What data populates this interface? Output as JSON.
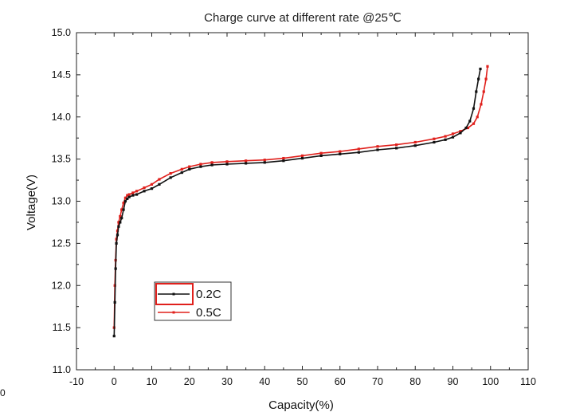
{
  "chart_data": {
    "type": "line",
    "title": "Charge curve at different rate @25℃",
    "xlabel": "Capacity(%)",
    "ylabel": "Voltage(V)",
    "xlim": [
      -10,
      110
    ],
    "ylim": [
      11.0,
      15.0
    ],
    "xticks": [
      "-10",
      "0",
      "10",
      "20",
      "30",
      "40",
      "50",
      "60",
      "70",
      "80",
      "90",
      "100",
      "110"
    ],
    "yticks": [
      "11.0",
      "11.5",
      "12.0",
      "12.5",
      "13.0",
      "13.5",
      "14.0",
      "14.5",
      "15.0"
    ],
    "grid": false,
    "legend_position": "lower-left",
    "series": [
      {
        "name": "0.2C",
        "color": "#111111",
        "x": [
          0.0,
          0.2,
          0.4,
          0.6,
          0.9,
          1.2,
          1.6,
          2.0,
          2.5,
          3.0,
          3.5,
          4.0,
          5.0,
          6.0,
          8.0,
          10.0,
          12.0,
          15.0,
          18.0,
          20.0,
          23.0,
          26.0,
          30.0,
          35.0,
          40.0,
          45.0,
          50.0,
          55.0,
          60.0,
          65.0,
          70.0,
          75.0,
          80.0,
          85.0,
          88.0,
          90.0,
          92.0,
          93.5,
          94.5,
          95.5,
          96.2,
          96.8,
          97.3
        ],
        "y": [
          11.4,
          11.8,
          12.2,
          12.5,
          12.6,
          12.7,
          12.75,
          12.8,
          12.9,
          13.0,
          13.03,
          13.05,
          13.07,
          13.08,
          13.12,
          13.15,
          13.2,
          13.28,
          13.34,
          13.38,
          13.41,
          13.43,
          13.44,
          13.45,
          13.46,
          13.48,
          13.51,
          13.54,
          13.56,
          13.58,
          13.61,
          13.63,
          13.66,
          13.7,
          13.73,
          13.76,
          13.81,
          13.87,
          13.95,
          14.1,
          14.3,
          14.45,
          14.57
        ]
      },
      {
        "name": "0.5C",
        "color": "#e0201c",
        "x": [
          0.0,
          0.2,
          0.4,
          0.6,
          0.9,
          1.2,
          1.6,
          2.0,
          2.5,
          3.0,
          3.5,
          4.0,
          5.0,
          6.0,
          8.0,
          10.0,
          12.0,
          15.0,
          18.0,
          20.0,
          23.0,
          26.0,
          30.0,
          35.0,
          40.0,
          45.0,
          50.0,
          55.0,
          60.0,
          65.0,
          70.0,
          75.0,
          80.0,
          85.0,
          88.0,
          90.0,
          92.0,
          94.0,
          95.5,
          96.5,
          97.5,
          98.2,
          98.8,
          99.2
        ],
        "y": [
          11.5,
          12.0,
          12.3,
          12.55,
          12.65,
          12.75,
          12.82,
          12.9,
          12.98,
          13.04,
          13.07,
          13.08,
          13.1,
          13.12,
          13.16,
          13.2,
          13.26,
          13.33,
          13.38,
          13.41,
          13.44,
          13.46,
          13.47,
          13.48,
          13.49,
          13.51,
          13.54,
          13.57,
          13.59,
          13.62,
          13.65,
          13.67,
          13.7,
          13.74,
          13.77,
          13.8,
          13.83,
          13.87,
          13.92,
          14.0,
          14.15,
          14.3,
          14.45,
          14.6
        ]
      }
    ]
  },
  "stray_text": "0"
}
